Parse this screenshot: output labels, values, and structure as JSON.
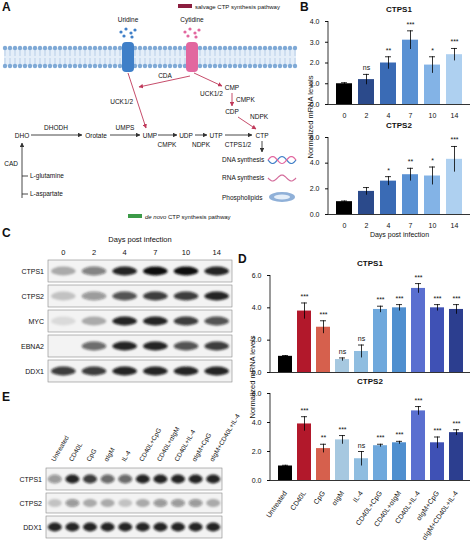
{
  "panel_labels": [
    "A",
    "B",
    "C",
    "D",
    "E"
  ],
  "diagram": {
    "legend_salvage": "salvage CTP synthesis pathway",
    "legend_de_novo_italic": "de novo",
    "legend_de_novo": " CTP synthesis pathway",
    "labels": {
      "uridine": "Uridine",
      "cytidine": "Cytidine",
      "cda": "CDA",
      "uck_uridine": "UCK1/2",
      "uck_cytidine": "UCK1/2",
      "cmp": "CMP",
      "cmpk_salvage": "CMPK",
      "cdp": "CDP",
      "ndpk_salvage": "NDPK",
      "dho": "DHO",
      "dhodh": "DHODH",
      "orotate": "Orotate",
      "umps": "UMPS",
      "ump": "UMP",
      "cmpk_de_novo": "CMPK",
      "udp": "UDP",
      "ndpk_de_novo": "NDPK",
      "utp": "UTP",
      "ctps": "CTPS1/2",
      "ctp": "CTP",
      "cad": "CAD",
      "glutamine": "L-glutamine",
      "aspartate": "L-aspartate",
      "dna": "DNA synthesis",
      "rna": "RNA synthesis",
      "lipids": "Phospholipids"
    }
  },
  "chart_data": [
    {
      "type": "bar",
      "title": "CTPS1",
      "ylabel": "Normalized mRNA levels",
      "categories": [
        "0",
        "2",
        "4",
        "7",
        "10",
        "14"
      ],
      "values": [
        1,
        1.2,
        2.0,
        3.1,
        1.9,
        2.4
      ],
      "errors": [
        0.05,
        0.25,
        0.3,
        0.45,
        0.4,
        0.3
      ],
      "annotations": [
        null,
        "ns",
        "**",
        "***",
        "*",
        "***"
      ],
      "colors": [
        "#000000",
        "#2b4a8b",
        "#3a6bb5",
        "#5a91d3",
        "#83b3e6",
        "#aed0f0"
      ],
      "ylim": [
        0,
        4
      ],
      "yticks": [
        0,
        1,
        2,
        3,
        4
      ]
    },
    {
      "type": "bar",
      "title": "CTPS2",
      "xlabel": "Days post infection",
      "categories": [
        "0",
        "2",
        "4",
        "7",
        "10",
        "14"
      ],
      "values": [
        1,
        1.8,
        2.6,
        3.1,
        3.0,
        4.3
      ],
      "errors": [
        0.05,
        0.3,
        0.35,
        0.5,
        0.7,
        1.0
      ],
      "annotations": [
        null,
        null,
        "*",
        "**",
        "*",
        "***"
      ],
      "colors": [
        "#000000",
        "#2b4a8b",
        "#3a6bb5",
        "#5a91d3",
        "#83b3e6",
        "#aed0f0"
      ],
      "ylim": [
        0,
        6
      ],
      "yticks": [
        0,
        2,
        4,
        6
      ]
    },
    {
      "type": "bar",
      "title": "CTPS1",
      "ylabel": "Normalized mRNA levels",
      "tick_labels": "y",
      "categories": [
        "Untreated",
        "CD40L",
        "CpG",
        "αIgM",
        "IL-4",
        "CD40L+CpG",
        "CD40L+αIgM",
        "CD40L+IL-4",
        "αIgM+CpG",
        "αIgM+CD40L+IL-4"
      ],
      "values": [
        1,
        3.8,
        2.8,
        0.8,
        1.3,
        3.9,
        4.0,
        5.2,
        4.0,
        3.9
      ],
      "errors": [
        0.05,
        0.5,
        0.4,
        0.1,
        0.4,
        0.2,
        0.2,
        0.3,
        0.2,
        0.3
      ],
      "annotations": [
        null,
        "***",
        "***",
        "ns",
        "ns",
        "***",
        "***",
        "***",
        "***",
        "***"
      ],
      "colors": [
        "#000000",
        "#b2182b",
        "#d6604d",
        "#a6c8e0",
        "#8fbde0",
        "#6fa8dc",
        "#4f8fcf",
        "#5a6fd0",
        "#3f51b5",
        "#2c3e8f"
      ],
      "ylim": [
        0,
        6
      ],
      "yticks": [
        0,
        2,
        4,
        6
      ]
    },
    {
      "type": "bar",
      "title": "CTPS2",
      "categories": [
        "Untreated",
        "CD40L",
        "CpG",
        "αIgM",
        "IL-4",
        "CD40L+CpG",
        "CD40L+αIgM",
        "CD40L+IL-4",
        "αIgM+CpG",
        "αIgM+CD40L+IL-4"
      ],
      "values": [
        1,
        3.9,
        2.2,
        2.8,
        1.5,
        2.4,
        2.6,
        4.8,
        2.6,
        3.3
      ],
      "errors": [
        0.05,
        0.5,
        0.3,
        0.3,
        0.5,
        0.1,
        0.1,
        0.3,
        0.4,
        0.2
      ],
      "annotations": [
        null,
        "***",
        "**",
        "***",
        "ns",
        "***",
        "***",
        "***",
        "***",
        "***"
      ],
      "colors": [
        "#000000",
        "#b2182b",
        "#d6604d",
        "#a6c8e0",
        "#8fbde0",
        "#6fa8dc",
        "#4f8fcf",
        "#5a6fd0",
        "#3f51b5",
        "#2c3e8f"
      ],
      "ylim": [
        0,
        6
      ],
      "yticks": [
        0,
        2,
        4,
        6
      ]
    }
  ],
  "blots": [
    {
      "header": "Days post infection",
      "lanes": [
        "0",
        "2",
        "4",
        "7",
        "10",
        "14"
      ],
      "rows": [
        {
          "name": "CTPS1",
          "intensity": [
            0.3,
            0.5,
            0.9,
            1,
            1,
            0.9
          ]
        },
        {
          "name": "CTPS2",
          "intensity": [
            0.2,
            0.4,
            0.7,
            0.8,
            0.8,
            0.9
          ]
        },
        {
          "name": "MYC",
          "intensity": [
            0.1,
            0.3,
            0.9,
            0.9,
            0.8,
            0.7
          ]
        },
        {
          "name": "EBNA2",
          "intensity": [
            0,
            0.6,
            0.9,
            0.9,
            0.7,
            0.8
          ]
        },
        {
          "name": "DDX1",
          "intensity": [
            0.8,
            0.8,
            0.9,
            0.9,
            0.9,
            0.9
          ]
        }
      ]
    },
    {
      "lanes": [
        "Untreated",
        "CD40L",
        "CpG",
        "αIgM",
        "IL-4",
        "CD40L+CpG",
        "CD40L+αIgM",
        "CD40L+IL-4",
        "αIgM+CpG",
        "αIgM+CD40L+IL-4"
      ],
      "rows": [
        {
          "name": "CTPS1",
          "intensity": [
            0.4,
            0.9,
            0.8,
            0.6,
            0.6,
            0.9,
            0.9,
            0.9,
            0.9,
            0.9
          ]
        },
        {
          "name": "CTPS2",
          "intensity": [
            0.2,
            0.4,
            0.3,
            0.3,
            0.2,
            0.3,
            0.4,
            0.4,
            0.4,
            0.3
          ]
        },
        {
          "name": "DDX1",
          "intensity": [
            0.9,
            0.9,
            0.9,
            0.9,
            0.9,
            0.9,
            0.9,
            0.9,
            0.9,
            0.9
          ]
        }
      ]
    }
  ]
}
